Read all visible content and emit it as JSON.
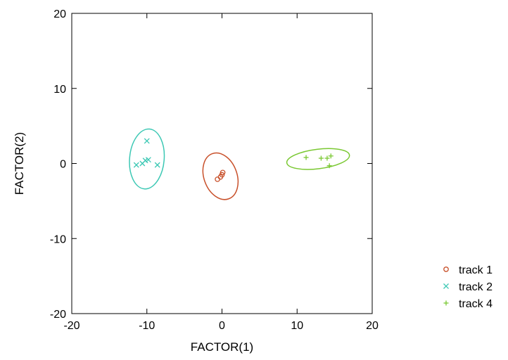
{
  "chart_data": {
    "type": "scatter",
    "title": "",
    "xlabel": "FACTOR(1)",
    "ylabel": "FACTOR(2)",
    "xlim": [
      -20,
      20
    ],
    "ylim": [
      -20,
      20
    ],
    "xticks": [
      -20,
      -10,
      0,
      10,
      20
    ],
    "yticks": [
      -20,
      -10,
      0,
      10,
      20
    ],
    "xtick_labels": [
      "-20",
      "-10",
      "0",
      "10",
      "20"
    ],
    "ytick_labels": [
      "-20",
      "-10",
      "0",
      "10",
      "20"
    ],
    "grid": false,
    "legend_position": "right",
    "series": [
      {
        "name": "track 1",
        "marker": "circle",
        "color": "#c8502a",
        "points": [
          [
            -0.2,
            -1.8
          ],
          [
            0.1,
            -1.2
          ],
          [
            -0.6,
            -2.1
          ],
          [
            0.0,
            -1.5
          ]
        ],
        "ellipse": {
          "center": [
            -0.2,
            -1.7
          ],
          "semi_axes": [
            2.2,
            3.2
          ],
          "rotation_deg": -20
        }
      },
      {
        "name": "track 2",
        "marker": "x",
        "color": "#3cc8b4",
        "points": [
          [
            -10.0,
            3.0
          ],
          [
            -11.4,
            -0.2
          ],
          [
            -10.6,
            0.0
          ],
          [
            -10.2,
            0.4
          ],
          [
            -9.8,
            0.5
          ],
          [
            -8.6,
            -0.2
          ]
        ],
        "ellipse": {
          "center": [
            -10.0,
            0.6
          ],
          "semi_axes": [
            2.3,
            4.0
          ],
          "rotation_deg": 5
        }
      },
      {
        "name": "track 4",
        "marker": "plus",
        "color": "#7ac832",
        "points": [
          [
            11.2,
            0.8
          ],
          [
            13.2,
            0.7
          ],
          [
            14.0,
            0.7
          ],
          [
            14.5,
            1.0
          ],
          [
            14.3,
            -0.3
          ]
        ],
        "ellipse": {
          "center": [
            12.8,
            0.6
          ],
          "semi_axes": [
            4.2,
            1.3
          ],
          "rotation_deg": -7
        }
      }
    ]
  }
}
